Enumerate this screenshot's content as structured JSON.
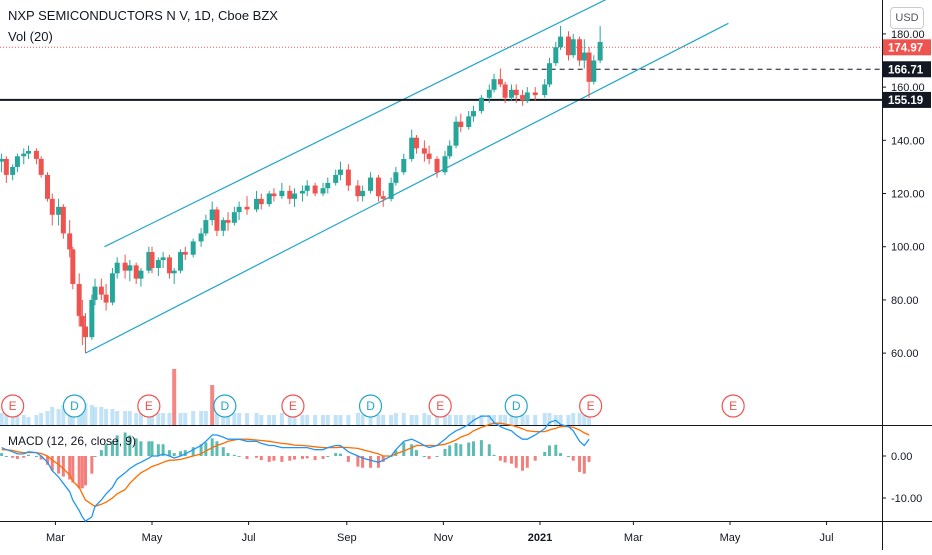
{
  "header": {
    "title": "NXP SEMICONDUCTORS N V, 1D, Cboe BZX",
    "volume_label": "Vol (20)",
    "currency_button": "USD"
  },
  "macd_label": "MACD (12, 26, close, 9)",
  "colors": {
    "up": "#26a69a",
    "down": "#ef5350",
    "channel": "#22a5c9",
    "macd_line": "#2196f3",
    "signal_line": "#ff6d00",
    "volume": "#b3dcf2",
    "price_badge": "#ef5350",
    "level_badge": "#131722"
  },
  "price_badges": {
    "last_price": "174.97",
    "dashed_level": "166.71",
    "solid_level": "155.19"
  },
  "event_markers": [
    {
      "x_date": "2020-02-03",
      "label": "E",
      "kind": "earnings"
    },
    {
      "x_date": "2020-03-13",
      "label": "D",
      "kind": "dividend"
    },
    {
      "x_date": "2020-04-29",
      "label": "E",
      "kind": "earnings"
    },
    {
      "x_date": "2020-06-16",
      "label": "D",
      "kind": "dividend"
    },
    {
      "x_date": "2020-07-29",
      "label": "E",
      "kind": "earnings"
    },
    {
      "x_date": "2020-09-16",
      "label": "D",
      "kind": "dividend"
    },
    {
      "x_date": "2020-10-30",
      "label": "E",
      "kind": "earnings"
    },
    {
      "x_date": "2020-12-17",
      "label": "D",
      "kind": "dividend"
    },
    {
      "x_date": "2021-02-02",
      "label": "E",
      "kind": "earnings"
    },
    {
      "x_date": "2021-05-03",
      "label": "E",
      "kind": "earnings"
    }
  ],
  "chart_data": [
    {
      "type": "candlestick",
      "title": "NXP SEMICONDUCTORS N V, 1D, Cboe BZX",
      "x_ticks": [
        "Mar",
        "May",
        "Jul",
        "Sep",
        "Nov",
        "2021",
        "Mar",
        "May",
        "Jul"
      ],
      "y_ticks": [
        60,
        80,
        100,
        120,
        140,
        160,
        180
      ],
      "ylim": [
        50,
        192
      ],
      "xlim": [
        "2020-01-26",
        "2021-08-05"
      ],
      "grid": false,
      "current_price": 174.97,
      "horizontal_levels": [
        {
          "value": 166.71,
          "style": "dashed",
          "start": "2020-12-16"
        },
        {
          "value": 155.19,
          "style": "solid"
        }
      ],
      "channel_lines": [
        {
          "name": "upper",
          "from": {
            "date": "2020-04-01",
            "price": 100
          },
          "to": {
            "date": "2021-03-01",
            "price": 198
          }
        },
        {
          "name": "lower",
          "from": {
            "date": "2020-03-20",
            "price": 60
          },
          "to": {
            "date": "2021-04-30",
            "price": 184
          }
        }
      ],
      "ohlc": [
        [
          "2020-01-27",
          132,
          135,
          128,
          133
        ],
        [
          "2020-01-30",
          133,
          134,
          124,
          127
        ],
        [
          "2020-02-03",
          127,
          131,
          125,
          130
        ],
        [
          "2020-02-06",
          130,
          135,
          128,
          134
        ],
        [
          "2020-02-10",
          134,
          137,
          131,
          135
        ],
        [
          "2020-02-13",
          135,
          138,
          133,
          136
        ],
        [
          "2020-02-18",
          136,
          137,
          131,
          133
        ],
        [
          "2020-02-21",
          133,
          134,
          126,
          127
        ],
        [
          "2020-02-25",
          127,
          128,
          117,
          118
        ],
        [
          "2020-02-28",
          118,
          120,
          108,
          112
        ],
        [
          "2020-03-03",
          112,
          118,
          108,
          115
        ],
        [
          "2020-03-06",
          115,
          116,
          103,
          105
        ],
        [
          "2020-03-10",
          105,
          110,
          96,
          99
        ],
        [
          "2020-03-12",
          99,
          100,
          84,
          86
        ],
        [
          "2020-03-16",
          86,
          90,
          70,
          74
        ],
        [
          "2020-03-18",
          74,
          80,
          63,
          70
        ],
        [
          "2020-03-20",
          70,
          75,
          60,
          66
        ],
        [
          "2020-03-24",
          66,
          82,
          65,
          80
        ],
        [
          "2020-03-26",
          80,
          88,
          78,
          85
        ],
        [
          "2020-03-30",
          85,
          88,
          80,
          82
        ],
        [
          "2020-04-02",
          82,
          86,
          76,
          79
        ],
        [
          "2020-04-06",
          79,
          92,
          78,
          90
        ],
        [
          "2020-04-09",
          90,
          96,
          88,
          94
        ],
        [
          "2020-04-14",
          94,
          97,
          88,
          91
        ],
        [
          "2020-04-17",
          91,
          95,
          87,
          93
        ],
        [
          "2020-04-21",
          93,
          94,
          86,
          88
        ],
        [
          "2020-04-24",
          88,
          92,
          85,
          91
        ],
        [
          "2020-04-29",
          91,
          100,
          90,
          98
        ],
        [
          "2020-05-01",
          98,
          100,
          90,
          92
        ],
        [
          "2020-05-05",
          92,
          96,
          89,
          95
        ],
        [
          "2020-05-08",
          95,
          98,
          92,
          96
        ],
        [
          "2020-05-12",
          96,
          97,
          88,
          90
        ],
        [
          "2020-05-15",
          90,
          92,
          86,
          91
        ],
        [
          "2020-05-19",
          91,
          99,
          90,
          98
        ],
        [
          "2020-05-22",
          98,
          100,
          95,
          97
        ],
        [
          "2020-05-27",
          97,
          103,
          96,
          102
        ],
        [
          "2020-06-01",
          102,
          107,
          100,
          105
        ],
        [
          "2020-06-04",
          105,
          112,
          104,
          110
        ],
        [
          "2020-06-08",
          110,
          117,
          108,
          114
        ],
        [
          "2020-06-11",
          114,
          115,
          104,
          106
        ],
        [
          "2020-06-15",
          106,
          111,
          104,
          110
        ],
        [
          "2020-06-18",
          110,
          113,
          106,
          109
        ],
        [
          "2020-06-22",
          109,
          115,
          108,
          113
        ],
        [
          "2020-06-25",
          113,
          117,
          110,
          115
        ],
        [
          "2020-06-30",
          115,
          119,
          112,
          114
        ],
        [
          "2020-07-06",
          114,
          121,
          113,
          118
        ],
        [
          "2020-07-09",
          118,
          120,
          114,
          116
        ],
        [
          "2020-07-14",
          116,
          121,
          115,
          120
        ],
        [
          "2020-07-17",
          120,
          122,
          117,
          119
        ],
        [
          "2020-07-22",
          119,
          124,
          118,
          121
        ],
        [
          "2020-07-27",
          121,
          123,
          116,
          118
        ],
        [
          "2020-07-30",
          118,
          122,
          115,
          120
        ],
        [
          "2020-08-04",
          120,
          123,
          117,
          121
        ],
        [
          "2020-08-07",
          121,
          125,
          119,
          123
        ],
        [
          "2020-08-12",
          123,
          124,
          119,
          120
        ],
        [
          "2020-08-17",
          120,
          124,
          119,
          122
        ],
        [
          "2020-08-20",
          122,
          126,
          120,
          124
        ],
        [
          "2020-08-25",
          124,
          129,
          123,
          127
        ],
        [
          "2020-08-28",
          127,
          132,
          125,
          129
        ],
        [
          "2020-09-02",
          129,
          131,
          121,
          123
        ],
        [
          "2020-09-08",
          123,
          125,
          117,
          119
        ],
        [
          "2020-09-11",
          119,
          123,
          117,
          121
        ],
        [
          "2020-09-16",
          121,
          128,
          120,
          126
        ],
        [
          "2020-09-21",
          126,
          127,
          117,
          119
        ],
        [
          "2020-09-24",
          119,
          121,
          115,
          118
        ],
        [
          "2020-09-29",
          118,
          126,
          117,
          124
        ],
        [
          "2020-10-02",
          124,
          130,
          123,
          128
        ],
        [
          "2020-10-07",
          128,
          135,
          127,
          133
        ],
        [
          "2020-10-12",
          133,
          144,
          132,
          141
        ],
        [
          "2020-10-15",
          141,
          142,
          135,
          137
        ],
        [
          "2020-10-20",
          137,
          140,
          132,
          135
        ],
        [
          "2020-10-23",
          135,
          138,
          131,
          133
        ],
        [
          "2020-10-28",
          133,
          134,
          126,
          128
        ],
        [
          "2020-11-02",
          128,
          136,
          127,
          134
        ],
        [
          "2020-11-05",
          134,
          140,
          133,
          138
        ],
        [
          "2020-11-09",
          138,
          149,
          137,
          147
        ],
        [
          "2020-11-12",
          147,
          150,
          143,
          145
        ],
        [
          "2020-11-17",
          145,
          151,
          144,
          149
        ],
        [
          "2020-11-20",
          149,
          153,
          147,
          151
        ],
        [
          "2020-11-25",
          151,
          157,
          150,
          156
        ],
        [
          "2020-11-30",
          156,
          161,
          154,
          159
        ],
        [
          "2020-12-03",
          159,
          165,
          158,
          163
        ],
        [
          "2020-12-07",
          163,
          167,
          160,
          161
        ],
        [
          "2020-12-10",
          161,
          162,
          154,
          156
        ],
        [
          "2020-12-14",
          156,
          161,
          155,
          159
        ],
        [
          "2020-12-17",
          159,
          161,
          154,
          157
        ],
        [
          "2020-12-21",
          157,
          159,
          153,
          155
        ],
        [
          "2020-12-24",
          155,
          160,
          154,
          158
        ],
        [
          "2020-12-29",
          158,
          160,
          155,
          157
        ],
        [
          "2021-01-04",
          157,
          163,
          156,
          161
        ],
        [
          "2021-01-07",
          161,
          171,
          160,
          169
        ],
        [
          "2021-01-11",
          169,
          177,
          168,
          175
        ],
        [
          "2021-01-14",
          175,
          183,
          174,
          179
        ],
        [
          "2021-01-19",
          179,
          181,
          170,
          172
        ],
        [
          "2021-01-22",
          172,
          180,
          171,
          178
        ],
        [
          "2021-01-26",
          178,
          179,
          168,
          170
        ],
        [
          "2021-01-29",
          170,
          178,
          167,
          173
        ],
        [
          "2021-02-01",
          173,
          175,
          156,
          162
        ],
        [
          "2021-02-04",
          162,
          172,
          161,
          170
        ],
        [
          "2021-02-08",
          170,
          183,
          169,
          177
        ]
      ],
      "volume": [
        6,
        6,
        5,
        5,
        5,
        4,
        5,
        6,
        7,
        9,
        8,
        10,
        11,
        12,
        13,
        12,
        11,
        10,
        9,
        9,
        8,
        8,
        7,
        7,
        7,
        6,
        6,
        7,
        7,
        6,
        6,
        6,
        28,
        6,
        6,
        7,
        7,
        7,
        20,
        6,
        6,
        6,
        6,
        6,
        6,
        6,
        5,
        5,
        5,
        6,
        5,
        5,
        5,
        5,
        5,
        5,
        5,
        5,
        5,
        5,
        6,
        5,
        5,
        5,
        5,
        5,
        6,
        6,
        5,
        5,
        6,
        5,
        5,
        5,
        5,
        5,
        5,
        5,
        5,
        5,
        5,
        5,
        5,
        5,
        5,
        5,
        5,
        5,
        5,
        6,
        6,
        5,
        5,
        5,
        6,
        6,
        5,
        6
      ],
      "volume_axis_max": 30
    },
    {
      "type": "line",
      "title": "MACD (12, 26, close, 9)",
      "y_ticks": [
        -10,
        0
      ],
      "ylim": [
        -16,
        12
      ],
      "series": [
        {
          "name": "MACD",
          "values": [
            2,
            1.5,
            1,
            0.5,
            0.5,
            1,
            0.8,
            0,
            -1.5,
            -3.5,
            -5,
            -6.5,
            -8.5,
            -10.5,
            -13,
            -14.5,
            -15.5,
            -14.5,
            -12,
            -10.5,
            -9,
            -7.5,
            -5.5,
            -4,
            -3,
            -2,
            -1.5,
            -0.5,
            0,
            0,
            0.5,
            0,
            -0.5,
            0,
            0.5,
            1.5,
            2.5,
            3.5,
            5,
            5,
            4.5,
            4,
            4,
            4,
            3.5,
            3.5,
            3,
            2.5,
            2.5,
            2,
            2,
            2,
            2,
            2,
            1.5,
            1.5,
            2,
            2.5,
            2.5,
            1,
            0,
            -0.5,
            -1,
            -1.5,
            -1,
            0,
            1.5,
            3.5,
            4,
            3.5,
            2.5,
            2,
            2.5,
            4,
            5,
            6,
            6.5,
            7.5,
            8.5,
            9.5,
            9.5,
            8,
            7,
            6.5,
            6,
            5,
            4,
            4,
            5,
            6.5,
            8,
            8.5,
            7.5,
            7,
            6,
            3.5,
            2.5,
            4
          ]
        },
        {
          "name": "Signal",
          "values": [
            1.5,
            1.5,
            1.3,
            1,
            0.8,
            0.8,
            0.8,
            0.6,
            0,
            -1,
            -2,
            -3,
            -4.5,
            -6,
            -7.5,
            -9,
            -10.5,
            -11.5,
            -12,
            -11.5,
            -11,
            -10,
            -9,
            -8,
            -6.5,
            -5,
            -4,
            -3,
            -2.5,
            -2,
            -1.5,
            -1,
            -1,
            -0.8,
            -0.5,
            0,
            0.5,
            1.2,
            2,
            2.5,
            3,
            3.5,
            3.8,
            4,
            4,
            3.8,
            3.7,
            3.5,
            3.3,
            3,
            2.8,
            2.6,
            2.5,
            2.4,
            2.2,
            2,
            2,
            2,
            2.1,
            2,
            1.8,
            1.5,
            1,
            0.5,
            0,
            0,
            0.5,
            1.2,
            2,
            2.5,
            2.5,
            2.5,
            2.5,
            2.8,
            3.2,
            3.8,
            4.5,
            5.2,
            6,
            6.8,
            7.5,
            7.8,
            7.8,
            7.6,
            7.3,
            7,
            6.5,
            6,
            5.8,
            5.8,
            6.2,
            6.6,
            7,
            7,
            6.8,
            6.2,
            5.5,
            5
          ]
        }
      ]
    }
  ]
}
